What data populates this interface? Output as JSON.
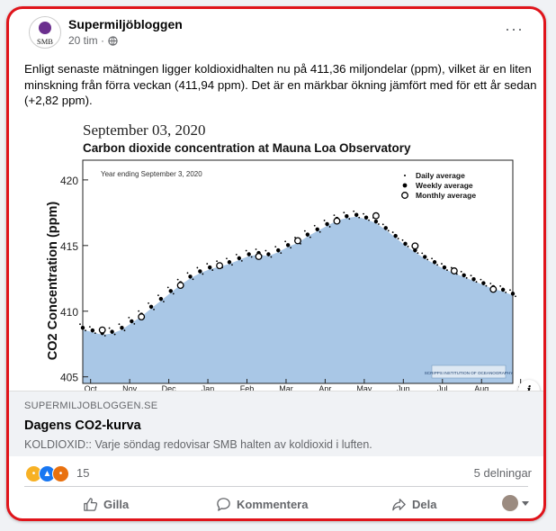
{
  "post": {
    "page_name": "Supermiljöbloggen",
    "avatar_text": "SMB",
    "time": "20 tim ·",
    "text": "Enligt senaste mätningen ligger koldioxidhalten nu på 411,36 miljondelar (ppm), vilket är en liten minskning från förra veckan (411,94 ppm). Det är en märkbar ökning jämfört med för ett år sedan (+2,82 ppm).",
    "more_label": "···"
  },
  "chart_data": {
    "type": "area",
    "date": "September 03, 2020",
    "title": "Carbon dioxide concentration at Mauna Loa Observatory",
    "note": "Year ending September 3, 2020",
    "ylabel": "CO2 Concentration (ppm)",
    "ylim": [
      404.5,
      421.5
    ],
    "yticks": [
      405,
      410,
      415,
      420
    ],
    "xtick_labels": [
      "Oct",
      "Nov",
      "Dec",
      "Jan",
      "Feb",
      "Mar",
      "Apr",
      "May",
      "Jun",
      "Jul",
      "Aug",
      "S"
    ],
    "legend": [
      "Daily average",
      "Weekly average",
      "Monthly average"
    ],
    "legend_placement": "top-right",
    "logo_text": "SCRIPPS INSTITUTION OF OCEANOGRAPHY",
    "fill_color": "#a9c7e6",
    "series": [
      {
        "name": "Weekly average",
        "x": [
          0.0,
          0.25,
          0.5,
          0.75,
          1.0,
          1.25,
          1.5,
          1.75,
          2.0,
          2.25,
          2.5,
          2.75,
          3.0,
          3.25,
          3.5,
          3.75,
          4.0,
          4.25,
          4.5,
          4.75,
          5.0,
          5.25,
          5.5,
          5.75,
          6.0,
          6.25,
          6.5,
          6.75,
          7.0,
          7.25,
          7.5,
          7.75,
          8.0,
          8.25,
          8.5,
          8.75,
          9.0,
          9.25,
          9.5,
          9.75,
          10.0,
          10.25,
          10.5,
          10.75,
          11.0
        ],
        "values": [
          408.6,
          408.4,
          408.2,
          408.3,
          408.6,
          409.1,
          409.6,
          410.2,
          410.8,
          411.4,
          412.0,
          412.5,
          412.9,
          413.2,
          413.4,
          413.6,
          413.9,
          414.2,
          414.3,
          414.2,
          414.5,
          414.9,
          415.2,
          415.7,
          416.1,
          416.5,
          416.9,
          417.1,
          417.2,
          417.0,
          416.7,
          416.2,
          415.6,
          415.0,
          414.5,
          414.0,
          413.6,
          413.2,
          412.9,
          412.6,
          412.3,
          412.0,
          411.7,
          411.5,
          411.2
        ]
      },
      {
        "name": "Monthly average",
        "x": [
          0.5,
          1.5,
          2.5,
          3.5,
          4.5,
          5.5,
          6.5,
          7.5,
          8.5,
          9.5,
          10.5
        ],
        "values": [
          408.5,
          409.5,
          411.9,
          413.4,
          414.1,
          415.3,
          416.8,
          417.2,
          414.9,
          413.0,
          411.6
        ]
      }
    ]
  },
  "link": {
    "domain": "SUPERMILJOBLOGGEN.SE",
    "title": "Dagens CO2-kurva",
    "description": "KOLDIOXID:: Varje söndag redovisar SMB halten av koldioxid i luften."
  },
  "info_label": "i",
  "stats": {
    "reaction_count": "15",
    "shares": "5 delningar"
  },
  "actions": {
    "like": "Gilla",
    "comment": "Kommentera",
    "share": "Dela"
  },
  "colors": {
    "frame": "#e0141b",
    "muted": "#65676b"
  }
}
